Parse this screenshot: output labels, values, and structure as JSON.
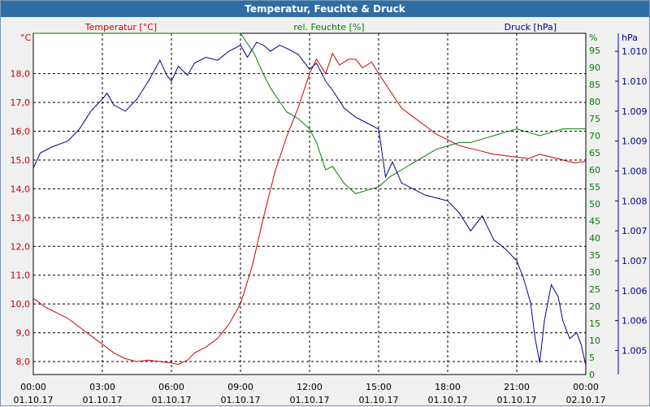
{
  "window": {
    "title": "Temperatur, Feuchte & Druck"
  },
  "colors": {
    "temperature": "#cc0000",
    "humidity": "#008000",
    "pressure": "#00008b",
    "grid": "#000000",
    "plot_bg": "#ffffff",
    "titlebar": "#2f6ea5"
  },
  "chart_data": {
    "type": "line",
    "title": "Temperatur, Feuchte & Druck",
    "grid": true,
    "x_axis": {
      "range_hours": [
        0,
        24
      ],
      "ticks": [
        {
          "hour": 0,
          "time": "00:00",
          "date": "01.10.17"
        },
        {
          "hour": 3,
          "time": "03:00",
          "date": "01.10.17"
        },
        {
          "hour": 6,
          "time": "06:00",
          "date": "01.10.17"
        },
        {
          "hour": 9,
          "time": "09:00",
          "date": "01.10.17"
        },
        {
          "hour": 12,
          "time": "12:00",
          "date": "01.10.17"
        },
        {
          "hour": 15,
          "time": "15:00",
          "date": "01.10.17"
        },
        {
          "hour": 18,
          "time": "18:00",
          "date": "01.10.17"
        },
        {
          "hour": 21,
          "time": "21:00",
          "date": "01.10.17"
        },
        {
          "hour": 24,
          "time": "00:00",
          "date": "02.10.17"
        }
      ]
    },
    "axes": {
      "temperature": {
        "label": "Temperatur [°C]",
        "unit": "°C",
        "ylim": [
          7.55,
          19.4
        ],
        "ticks": [
          8,
          9,
          10,
          11,
          12,
          13,
          14,
          15,
          16,
          17,
          18
        ],
        "tick_labels": [
          "8,0",
          "9,0",
          "10,0",
          "11,0",
          "12,0",
          "13,0",
          "14,0",
          "15,0",
          "16,0",
          "17,0",
          "18,0"
        ]
      },
      "humidity": {
        "label": "rel. Feuchte [%]",
        "unit": "%",
        "ylim": [
          0,
          100
        ],
        "ticks": [
          0,
          5,
          10,
          15,
          20,
          25,
          30,
          35,
          40,
          45,
          50,
          55,
          60,
          65,
          70,
          75,
          80,
          85,
          90,
          95
        ],
        "tick_labels": [
          "0",
          "5",
          "10",
          "15",
          "20",
          "25",
          "30",
          "35",
          "40",
          "45",
          "50",
          "55",
          "60",
          "65",
          "70",
          "75",
          "80",
          "85",
          "90",
          "95"
        ]
      },
      "pressure": {
        "label": "Druck [hPa]",
        "unit": "hPa",
        "ylim": [
          1004.6,
          1010.3
        ],
        "ticks": [
          1005,
          1005.5,
          1006,
          1006.5,
          1007,
          1007.5,
          1008,
          1008.5,
          1009,
          1009.5,
          1010
        ],
        "tick_labels": [
          "1.005",
          "1.006",
          "1.006",
          "1.007",
          "1.007",
          "1.008",
          "1.008",
          "1.009",
          "1.009",
          "1.010",
          "1.010"
        ]
      }
    },
    "series": [
      {
        "name": "Temperatur [°C]",
        "axis": "temperature",
        "x": [
          0,
          0.5,
          1,
          1.5,
          2,
          2.5,
          3,
          3.5,
          4,
          4.5,
          5,
          5.5,
          6,
          6.3,
          6.7,
          7,
          7.5,
          8,
          8.5,
          9,
          9.5,
          10,
          10.5,
          11,
          11.5,
          12,
          12.3,
          12.7,
          13,
          13.3,
          13.7,
          14,
          14.3,
          14.7,
          15,
          15.5,
          16,
          16.5,
          17,
          17.5,
          18,
          18.5,
          19,
          19.5,
          20,
          20.5,
          21,
          21.5,
          22,
          22.5,
          23,
          23.5,
          24
        ],
        "values": [
          10.2,
          9.9,
          9.7,
          9.5,
          9.2,
          8.9,
          8.6,
          8.3,
          8.1,
          8.0,
          8.05,
          8.0,
          7.95,
          7.9,
          8.05,
          8.3,
          8.5,
          8.8,
          9.3,
          10.0,
          11.3,
          13.0,
          14.6,
          15.8,
          16.8,
          18.0,
          18.5,
          18.0,
          18.7,
          18.3,
          18.5,
          18.5,
          18.2,
          18.4,
          18.0,
          17.4,
          16.8,
          16.5,
          16.2,
          15.9,
          15.7,
          15.5,
          15.4,
          15.3,
          15.2,
          15.15,
          15.1,
          15.05,
          15.2,
          15.1,
          15.0,
          14.9,
          14.95
        ]
      },
      {
        "name": "rel. Feuchte [%]",
        "axis": "humidity",
        "x": [
          0,
          3,
          6,
          8,
          9,
          9.2,
          9.6,
          10,
          10.3,
          10.7,
          11,
          11.5,
          12,
          12.3,
          12.5,
          12.7,
          13,
          13.5,
          14,
          14.5,
          15,
          15.5,
          16,
          16.5,
          17,
          17.5,
          18,
          18.5,
          19,
          19.5,
          20,
          20.5,
          21,
          21.5,
          22,
          22.5,
          23,
          23.5,
          24
        ],
        "values": [
          100,
          100,
          100,
          100,
          100,
          98,
          94,
          88,
          84,
          80,
          77,
          75,
          72,
          68,
          64,
          60,
          61,
          56,
          53,
          54,
          55,
          58,
          60,
          62,
          64,
          66,
          67,
          68,
          68,
          69,
          70,
          71,
          72,
          71,
          70,
          71,
          72,
          72,
          72
        ]
      },
      {
        "name": "Druck [hPa]",
        "axis": "pressure",
        "x": [
          0,
          0.3,
          0.8,
          1.5,
          2,
          2.5,
          3,
          3.2,
          3.5,
          4,
          4.5,
          5,
          5.5,
          5.8,
          6,
          6.3,
          6.7,
          7,
          7.5,
          8,
          8.5,
          9,
          9.3,
          9.7,
          10,
          10.3,
          10.7,
          11,
          11.5,
          12,
          12.3,
          12.7,
          13,
          13.5,
          14,
          14.5,
          15,
          15.3,
          15.6,
          16,
          16.5,
          17,
          17.5,
          18,
          18.5,
          19,
          19.5,
          20,
          20.5,
          21,
          21.3,
          21.6,
          21.8,
          22,
          22.2,
          22.5,
          22.8,
          23,
          23.3,
          23.6,
          23.8,
          24
        ],
        "values": [
          1008.05,
          1008.3,
          1008.4,
          1008.5,
          1008.7,
          1009.0,
          1009.2,
          1009.3,
          1009.1,
          1009.0,
          1009.2,
          1009.5,
          1009.85,
          1009.6,
          1009.5,
          1009.75,
          1009.6,
          1009.8,
          1009.9,
          1009.85,
          1010.0,
          1010.1,
          1009.9,
          1010.15,
          1010.1,
          1010.0,
          1010.1,
          1010.05,
          1009.95,
          1009.7,
          1009.8,
          1009.5,
          1009.35,
          1009.05,
          1008.9,
          1008.8,
          1008.7,
          1007.9,
          1008.15,
          1007.8,
          1007.7,
          1007.6,
          1007.55,
          1007.5,
          1007.3,
          1007.0,
          1007.25,
          1006.85,
          1006.7,
          1006.5,
          1006.2,
          1005.8,
          1005.2,
          1004.8,
          1005.5,
          1006.1,
          1005.9,
          1005.5,
          1005.2,
          1005.3,
          1005.1,
          1004.75
        ]
      }
    ]
  }
}
